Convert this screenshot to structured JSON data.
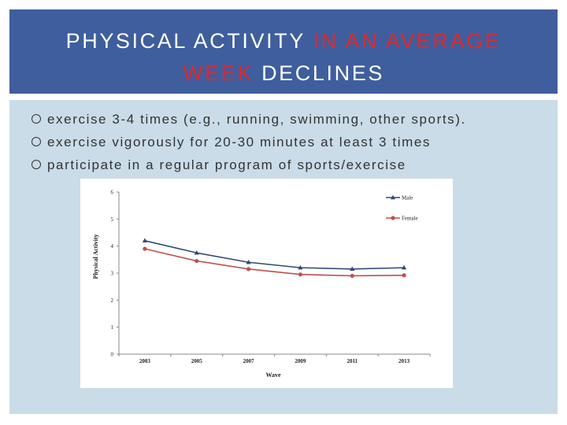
{
  "slide": {
    "title_part1": "PHYSICAL ACTIVITY ",
    "title_part2": "IN AN AVERAGE",
    "title_part3": "WEEK",
    "title_part4": " DECLINES",
    "title_highlight_color": "#e0282d",
    "header_color": "#3f5e9d",
    "content_bg_color": "#c9dce8"
  },
  "bullets": [
    {
      "text": "exercise 3-4 times (e.g., running, swimming, other sports).",
      "icon": "circle-bullet-icon"
    },
    {
      "text": "exercise vigorously for 20-30 minutes at least 3 times",
      "icon": "circle-bullet-icon"
    },
    {
      "text": "participate in a regular program of sports/exercise",
      "icon": "circle-bullet-icon"
    }
  ],
  "chart_data": {
    "type": "line",
    "x": [
      "2003",
      "2005",
      "2007",
      "2009",
      "2011",
      "2013"
    ],
    "series": [
      {
        "name": "Male",
        "values": [
          4.2,
          3.75,
          3.4,
          3.2,
          3.15,
          3.2
        ],
        "color": "#2e4a7a",
        "marker": "triangle"
      },
      {
        "name": "Female",
        "values": [
          3.9,
          3.45,
          3.15,
          2.95,
          2.9,
          2.92
        ],
        "color": "#c0504d",
        "marker": "circle"
      }
    ],
    "xlabel": "Wave",
    "ylabel": "Physical Activity",
    "yticks": [
      "0",
      "1",
      "2",
      "3",
      "4",
      "5",
      "6"
    ],
    "ylim": [
      0,
      6
    ],
    "grid": false,
    "legend": "top-right"
  }
}
